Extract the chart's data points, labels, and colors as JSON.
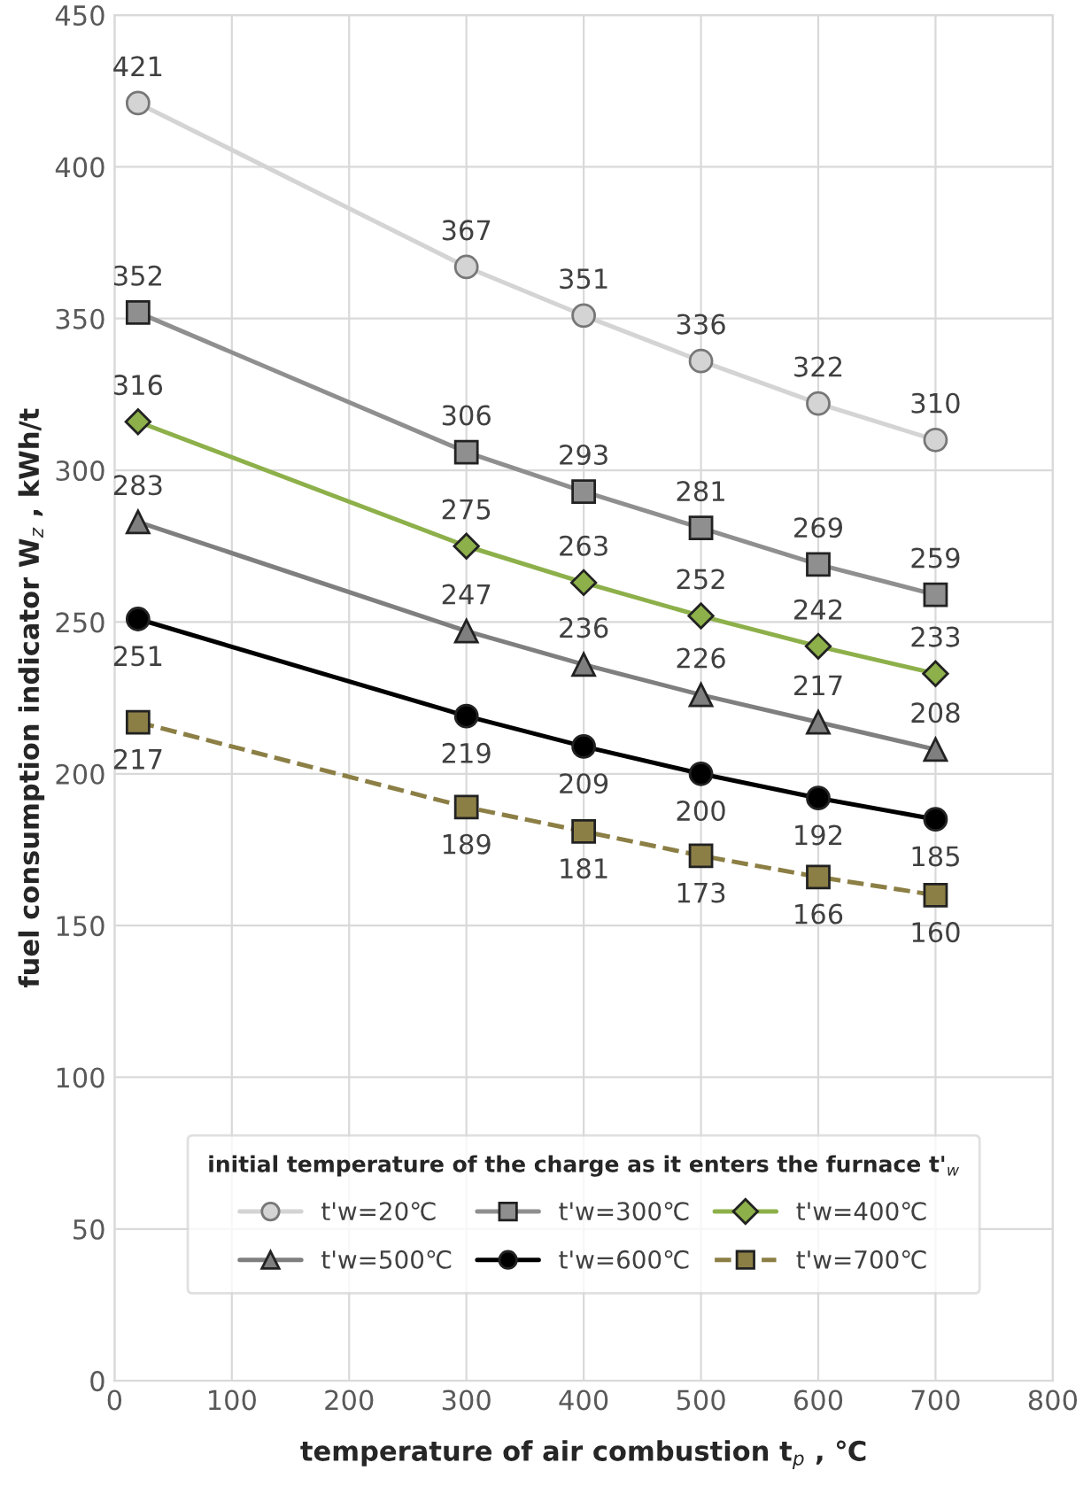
{
  "chart_data": {
    "type": "line",
    "xlabel": "temperature of air combustion t$_{p}$ , ℃",
    "ylabel": "fuel consumption indicator W$_{z}$ , kWh/t",
    "legend_title": "initial temperature of the charge as it enters the furnace t'$_{w}$",
    "x": [
      20,
      300,
      400,
      500,
      600,
      700
    ],
    "series": [
      {
        "name": "t'w=20℃",
        "color": "#d4d4d4",
        "marker": "circle",
        "line_style": "solid",
        "values": [
          421,
          367,
          351,
          336,
          322,
          310
        ]
      },
      {
        "name": "t'w=300℃",
        "color": "#8f8f8f",
        "marker": "square",
        "line_style": "solid",
        "values": [
          352,
          306,
          293,
          281,
          269,
          259
        ]
      },
      {
        "name": "t'w=400℃",
        "color": "#8db04a",
        "marker": "diamond",
        "line_style": "solid",
        "values": [
          316,
          275,
          263,
          252,
          242,
          233
        ]
      },
      {
        "name": "t'w=500℃",
        "color": "#7f7f7f",
        "marker": "triangle",
        "line_style": "solid",
        "values": [
          283,
          247,
          236,
          226,
          217,
          208
        ]
      },
      {
        "name": "t'w=600℃",
        "color": "#000000",
        "marker": "circle",
        "line_style": "solid",
        "values": [
          251,
          219,
          209,
          200,
          192,
          185
        ]
      },
      {
        "name": "t'w=700℃",
        "color": "#8c7f45",
        "marker": "square",
        "line_style": "dashed",
        "values": [
          217,
          189,
          181,
          173,
          166,
          160
        ]
      }
    ],
    "data_labels": true,
    "xlim": [
      0,
      800
    ],
    "xticks": [
      0,
      100,
      200,
      300,
      400,
      500,
      600,
      700,
      800
    ],
    "ylim": [
      0,
      450
    ],
    "yticks": [
      0,
      50,
      100,
      150,
      200,
      250,
      300,
      350,
      400,
      450
    ],
    "grid": true,
    "legend": "bottom"
  }
}
